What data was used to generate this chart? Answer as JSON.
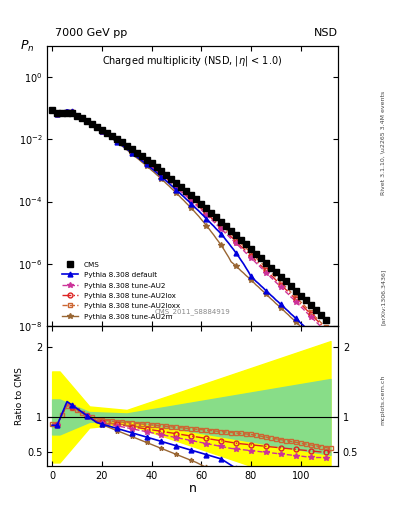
{
  "title_top_left": "7000 GeV pp",
  "title_top_right": "NSD",
  "plot_title": "Charged multiplicity (NSD, |\\u03b7| < 1.0)",
  "xlabel": "n",
  "ylabel_main": "P_n",
  "ylabel_ratio": "Ratio to CMS",
  "right_label_top": "Rivet 3.1.10, \\u2265 3.4M events",
  "right_label_mid": "[arXiv:1306.3436]",
  "right_label_bot": "mcplots.cern.ch",
  "cms_ref_label": "CMS_2011_S8884919",
  "xlim": [
    -2,
    115
  ],
  "ylim_main": [
    1e-08,
    10
  ],
  "ylim_ratio": [
    0.3,
    2.3
  ],
  "cms_color": "#000000",
  "default_color": "#0000dd",
  "au2_color": "#cc3399",
  "au2lox_color": "#dd2222",
  "au2loxx_color": "#cc6633",
  "au2m_color": "#996633"
}
